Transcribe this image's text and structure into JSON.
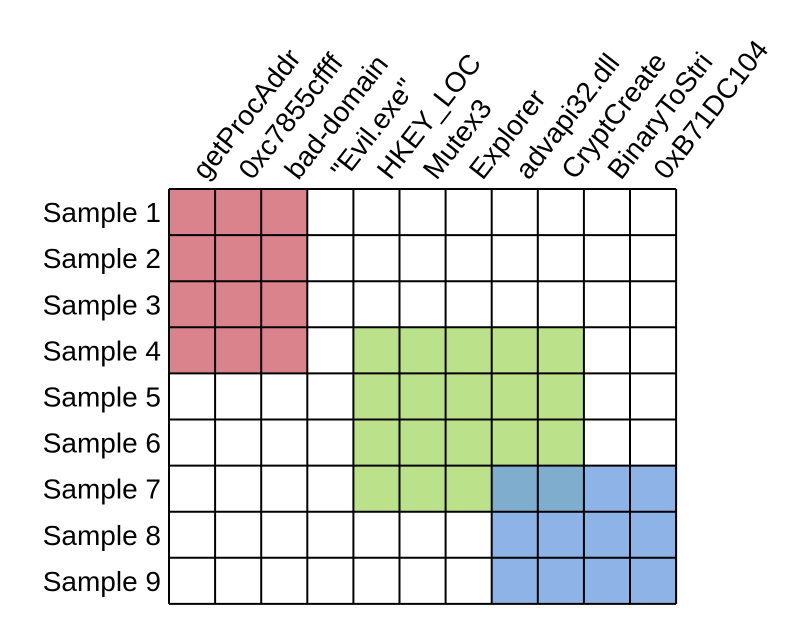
{
  "columns": [
    "getProcAddr",
    "0xc7855cffff",
    "bad-domain",
    "\"Evil.exe\"",
    "HKEY_LOC",
    "Mutex3",
    "Explorer",
    "advapi32.dll",
    "CryptCreate",
    "BinaryToStri",
    "0xB71DC104"
  ],
  "rows": [
    "Sample 1",
    "Sample 2",
    "Sample 3",
    "Sample 4",
    "Sample 5",
    "Sample 6",
    "Sample 7",
    "Sample 8",
    "Sample 9"
  ],
  "clusters": [
    {
      "color": "#d0606c",
      "row_start": 0,
      "row_end": 3,
      "col_start": 0,
      "col_end": 2
    },
    {
      "color": "#a8d86a",
      "row_start": 3,
      "row_end": 6,
      "col_start": 4,
      "col_end": 8
    },
    {
      "color": "#6e9de0",
      "row_start": 6,
      "row_end": 8,
      "col_start": 7,
      "col_end": 10
    }
  ],
  "colors": {
    "grid": "#000000",
    "cluster_grid": "#3d3d3d",
    "background": "#ffffff"
  }
}
